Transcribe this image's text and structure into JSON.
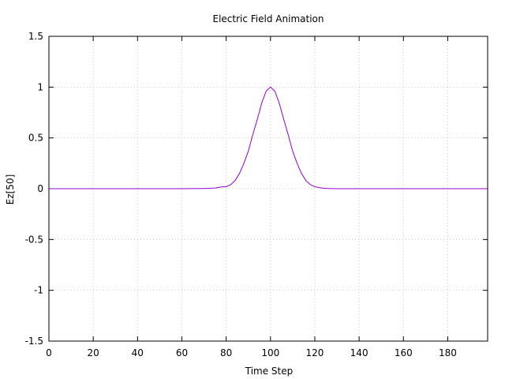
{
  "chart_data": {
    "type": "line",
    "title": "Electric Field Animation",
    "xlabel": "Time Step",
    "ylabel": "Ez[50]",
    "xlim": [
      0,
      198
    ],
    "ylim": [
      -1.5,
      1.5
    ],
    "xticks": [
      0,
      20,
      40,
      60,
      80,
      100,
      120,
      140,
      160,
      180
    ],
    "yticks": [
      -1.5,
      -1,
      -0.5,
      0,
      0.5,
      1,
      1.5
    ],
    "xtick_labels": [
      "0",
      "20",
      "40",
      "60",
      "80",
      "100",
      "120",
      "140",
      "160",
      "180"
    ],
    "ytick_labels": [
      "-1.5",
      "-1",
      "-0.5",
      "0",
      "0.5",
      "1",
      "1.5"
    ],
    "grid": true,
    "series": [
      {
        "color": "#9400d3",
        "x": [
          0,
          10,
          20,
          30,
          40,
          50,
          60,
          70,
          75,
          78,
          80,
          82,
          84,
          86,
          88,
          90,
          92,
          94,
          96,
          98,
          100,
          102,
          104,
          106,
          108,
          110,
          112,
          114,
          116,
          118,
          120,
          122,
          125,
          130,
          140,
          150,
          160,
          170,
          180,
          190,
          198
        ],
        "y": [
          0,
          0,
          0,
          0,
          0,
          0,
          0,
          0.002,
          0.007,
          0.018,
          0.02,
          0.04,
          0.08,
          0.15,
          0.25,
          0.37,
          0.53,
          0.68,
          0.84,
          0.96,
          1.0,
          0.96,
          0.84,
          0.68,
          0.53,
          0.37,
          0.25,
          0.15,
          0.08,
          0.04,
          0.02,
          0.01,
          0.003,
          0,
          0,
          0,
          0,
          0,
          0,
          0,
          0
        ]
      }
    ]
  }
}
